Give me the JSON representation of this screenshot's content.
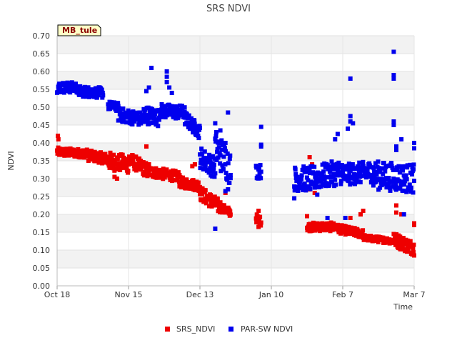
{
  "chart_data": {
    "type": "scatter",
    "title": "SRS NDVI",
    "site_label": "MB_tule",
    "xlabel": "Time",
    "ylabel": "NDVI",
    "ylim": [
      0,
      0.7
    ],
    "yticks": [
      "0.00",
      "0.05",
      "0.10",
      "0.15",
      "0.20",
      "0.25",
      "0.30",
      "0.35",
      "0.40",
      "0.45",
      "0.50",
      "0.55",
      "0.60",
      "0.65",
      "0.70"
    ],
    "xlim_days": [
      0,
      140
    ],
    "xticks": [
      {
        "day": 0,
        "label": "Oct 18"
      },
      {
        "day": 28,
        "label": "Nov 15"
      },
      {
        "day": 56,
        "label": "Dec 13"
      },
      {
        "day": 84,
        "label": "Jan 10"
      },
      {
        "day": 112,
        "label": "Feb 7"
      },
      {
        "day": 140,
        "label": "Mar 7"
      }
    ],
    "series": [
      {
        "name": "SRS_NDVI",
        "color": "#ee0000",
        "segments": [
          {
            "from": 0,
            "to": 12,
            "v0": 0.375,
            "v1": 0.37,
            "spread": 0.012
          },
          {
            "from": 12,
            "to": 20,
            "v0": 0.365,
            "v1": 0.355,
            "spread": 0.015
          },
          {
            "from": 20,
            "to": 28,
            "v0": 0.35,
            "v1": 0.34,
            "spread": 0.025
          },
          {
            "from": 28,
            "to": 36,
            "v0": 0.355,
            "v1": 0.32,
            "spread": 0.02
          },
          {
            "from": 36,
            "to": 48,
            "v0": 0.32,
            "v1": 0.305,
            "spread": 0.015
          },
          {
            "from": 48,
            "to": 56,
            "v0": 0.29,
            "v1": 0.28,
            "spread": 0.015
          },
          {
            "from": 56,
            "to": 64,
            "v0": 0.26,
            "v1": 0.22,
            "spread": 0.02
          },
          {
            "from": 64,
            "to": 68,
            "v0": 0.22,
            "v1": 0.205,
            "spread": 0.012
          },
          {
            "from": 78,
            "to": 80,
            "v0": 0.19,
            "v1": 0.18,
            "spread": 0.012
          },
          {
            "from": 98,
            "to": 110,
            "v0": 0.165,
            "v1": 0.165,
            "spread": 0.012
          },
          {
            "from": 110,
            "to": 120,
            "v0": 0.16,
            "v1": 0.145,
            "spread": 0.012
          },
          {
            "from": 120,
            "to": 132,
            "v0": 0.135,
            "v1": 0.125,
            "spread": 0.008
          },
          {
            "from": 132,
            "to": 140,
            "v0": 0.13,
            "v1": 0.105,
            "spread": 0.02
          }
        ],
        "points": [
          {
            "x": 0.3,
            "y": 0.42
          },
          {
            "x": 0.5,
            "y": 0.41
          },
          {
            "x": 22.5,
            "y": 0.305
          },
          {
            "x": 23.5,
            "y": 0.3
          },
          {
            "x": 35,
            "y": 0.39
          },
          {
            "x": 36,
            "y": 0.34
          },
          {
            "x": 53,
            "y": 0.335
          },
          {
            "x": 54,
            "y": 0.34
          },
          {
            "x": 66,
            "y": 0.26
          },
          {
            "x": 79,
            "y": 0.21
          },
          {
            "x": 79,
            "y": 0.165
          },
          {
            "x": 99,
            "y": 0.36
          },
          {
            "x": 100,
            "y": 0.34
          },
          {
            "x": 99,
            "y": 0.27
          },
          {
            "x": 101,
            "y": 0.26
          },
          {
            "x": 98,
            "y": 0.195
          },
          {
            "x": 104,
            "y": 0.175
          },
          {
            "x": 115,
            "y": 0.19
          },
          {
            "x": 119,
            "y": 0.2
          },
          {
            "x": 120,
            "y": 0.21
          },
          {
            "x": 133,
            "y": 0.225
          },
          {
            "x": 133,
            "y": 0.205
          },
          {
            "x": 132,
            "y": 0.145
          },
          {
            "x": 135,
            "y": 0.2
          },
          {
            "x": 140,
            "y": 0.175
          },
          {
            "x": 140,
            "y": 0.17
          }
        ]
      },
      {
        "name": "PAR-SW NDVI",
        "color": "#0000ee",
        "segments": [
          {
            "from": 0,
            "to": 8,
            "v0": 0.555,
            "v1": 0.555,
            "spread": 0.015
          },
          {
            "from": 8,
            "to": 18,
            "v0": 0.545,
            "v1": 0.54,
            "spread": 0.015
          },
          {
            "from": 20,
            "to": 24,
            "v0": 0.505,
            "v1": 0.5,
            "spread": 0.012
          },
          {
            "from": 24,
            "to": 34,
            "v0": 0.48,
            "v1": 0.465,
            "spread": 0.02
          },
          {
            "from": 34,
            "to": 40,
            "v0": 0.48,
            "v1": 0.47,
            "spread": 0.025
          },
          {
            "from": 40,
            "to": 50,
            "v0": 0.49,
            "v1": 0.485,
            "spread": 0.02
          },
          {
            "from": 50,
            "to": 56,
            "v0": 0.47,
            "v1": 0.43,
            "spread": 0.02
          },
          {
            "from": 56,
            "to": 62,
            "v0": 0.36,
            "v1": 0.33,
            "spread": 0.03
          },
          {
            "from": 62,
            "to": 68,
            "v0": 0.39,
            "v1": 0.33,
            "spread": 0.05
          },
          {
            "from": 78,
            "to": 80,
            "v0": 0.32,
            "v1": 0.32,
            "spread": 0.02
          },
          {
            "from": 93,
            "to": 100,
            "v0": 0.3,
            "v1": 0.3,
            "spread": 0.035
          },
          {
            "from": 100,
            "to": 112,
            "v0": 0.3,
            "v1": 0.32,
            "spread": 0.035
          },
          {
            "from": 112,
            "to": 124,
            "v0": 0.31,
            "v1": 0.32,
            "spread": 0.03
          },
          {
            "from": 124,
            "to": 140,
            "v0": 0.31,
            "v1": 0.3,
            "spread": 0.04
          }
        ],
        "points": [
          {
            "x": 37,
            "y": 0.61
          },
          {
            "x": 43,
            "y": 0.6
          },
          {
            "x": 43,
            "y": 0.585
          },
          {
            "x": 43,
            "y": 0.57
          },
          {
            "x": 44,
            "y": 0.555
          },
          {
            "x": 45,
            "y": 0.54
          },
          {
            "x": 36,
            "y": 0.555
          },
          {
            "x": 35,
            "y": 0.545
          },
          {
            "x": 67,
            "y": 0.485
          },
          {
            "x": 62,
            "y": 0.455
          },
          {
            "x": 64,
            "y": 0.435
          },
          {
            "x": 66,
            "y": 0.4
          },
          {
            "x": 66,
            "y": 0.265
          },
          {
            "x": 67,
            "y": 0.27
          },
          {
            "x": 62,
            "y": 0.16
          },
          {
            "x": 68,
            "y": 0.31
          },
          {
            "x": 80,
            "y": 0.445
          },
          {
            "x": 80,
            "y": 0.395
          },
          {
            "x": 80,
            "y": 0.39
          },
          {
            "x": 93,
            "y": 0.245
          },
          {
            "x": 102,
            "y": 0.255
          },
          {
            "x": 106,
            "y": 0.19
          },
          {
            "x": 110,
            "y": 0.425
          },
          {
            "x": 109,
            "y": 0.41
          },
          {
            "x": 115,
            "y": 0.58
          },
          {
            "x": 115,
            "y": 0.475
          },
          {
            "x": 115,
            "y": 0.46
          },
          {
            "x": 116,
            "y": 0.455
          },
          {
            "x": 114,
            "y": 0.44
          },
          {
            "x": 113,
            "y": 0.19
          },
          {
            "x": 132,
            "y": 0.655
          },
          {
            "x": 132,
            "y": 0.59
          },
          {
            "x": 132,
            "y": 0.58
          },
          {
            "x": 132,
            "y": 0.46
          },
          {
            "x": 132,
            "y": 0.45
          },
          {
            "x": 133,
            "y": 0.39
          },
          {
            "x": 133,
            "y": 0.38
          },
          {
            "x": 135,
            "y": 0.41
          },
          {
            "x": 136,
            "y": 0.2
          },
          {
            "x": 140,
            "y": 0.4
          },
          {
            "x": 140,
            "y": 0.385
          }
        ]
      }
    ],
    "legend": [
      {
        "label": "SRS_NDVI",
        "color": "#ee0000"
      },
      {
        "label": "PAR-SW NDVI",
        "color": "#0000ee"
      }
    ],
    "legend_position": "bottom-center",
    "grid": "alternating-bands"
  }
}
